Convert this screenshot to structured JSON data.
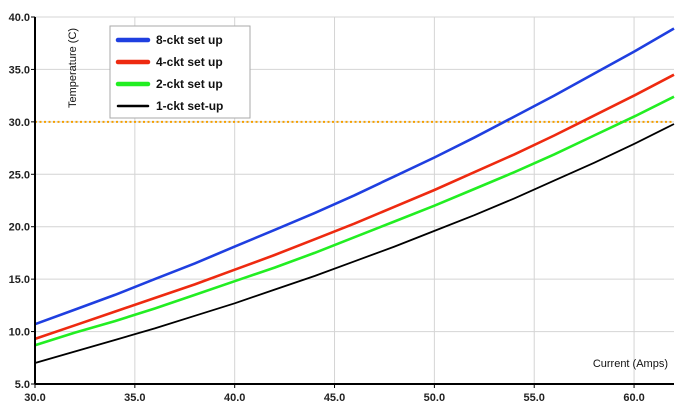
{
  "chart_data": {
    "type": "line",
    "title": "",
    "xlabel": "Current (Amps)",
    "ylabel": "Temperature (C)",
    "xlim": [
      30,
      62
    ],
    "ylim": [
      5,
      40
    ],
    "grid": true,
    "legend_position": "top-left",
    "x_ticks": [
      "30.0",
      "35.0",
      "40.0",
      "45.0",
      "50.0",
      "55.0",
      "60.0"
    ],
    "y_ticks": [
      "5.0",
      "10.0",
      "15.0",
      "20.0",
      "25.0",
      "30.0",
      "35.0",
      "40.0"
    ],
    "x": [
      30,
      32,
      34,
      36,
      38,
      40,
      42,
      44,
      46,
      48,
      50,
      52,
      54,
      56,
      58,
      60,
      62
    ],
    "series": [
      {
        "name": "8-ckt set up",
        "color": "#1f3fe0",
        "values": [
          10.7,
          12.1,
          13.5,
          15.0,
          16.5,
          18.1,
          19.7,
          21.3,
          23.0,
          24.8,
          26.6,
          28.5,
          30.5,
          32.5,
          34.6,
          36.7,
          38.9
        ]
      },
      {
        "name": "4-ckt set up",
        "color": "#ee2a10",
        "values": [
          9.3,
          10.6,
          11.9,
          13.2,
          14.5,
          15.9,
          17.3,
          18.8,
          20.3,
          21.9,
          23.5,
          25.2,
          26.9,
          28.7,
          30.6,
          32.5,
          34.5
        ]
      },
      {
        "name": "2-ckt set up",
        "color": "#22ee22",
        "values": [
          8.7,
          9.9,
          11.0,
          12.2,
          13.5,
          14.8,
          16.1,
          17.5,
          19.0,
          20.5,
          22.0,
          23.6,
          25.2,
          26.9,
          28.7,
          30.5,
          32.4
        ]
      },
      {
        "name": "1-ckt set-up",
        "color": "#000000",
        "values": [
          7.0,
          8.1,
          9.2,
          10.3,
          11.5,
          12.7,
          14.0,
          15.3,
          16.7,
          18.1,
          19.6,
          21.1,
          22.7,
          24.4,
          26.1,
          27.9,
          29.8
        ]
      }
    ],
    "reference_line": {
      "y": 30,
      "color": "#f5a000"
    }
  }
}
